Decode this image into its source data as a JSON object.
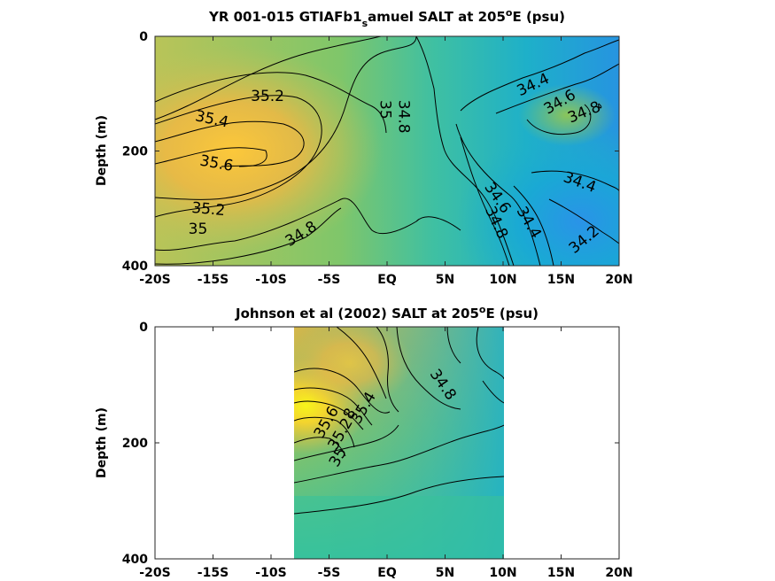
{
  "chart_data": [
    {
      "type": "contour",
      "title": {
        "before": "YR 001-015 GTIAFb1",
        "sub": "s",
        "after": "amuel SALT at 205",
        "sup": "o",
        "end": "E (psu)"
      },
      "ylabel": "Depth (m)",
      "xlim": [
        -20,
        20
      ],
      "ylim": [
        0,
        400
      ],
      "y_reversed": true,
      "x_ticks": [
        {
          "v": -20,
          "label": "-20S"
        },
        {
          "v": -15,
          "label": "-15S"
        },
        {
          "v": -10,
          "label": "-10S"
        },
        {
          "v": -5,
          "label": "-5S"
        },
        {
          "v": 0,
          "label": "EQ"
        },
        {
          "v": 5,
          "label": "5N"
        },
        {
          "v": 10,
          "label": "10N"
        },
        {
          "v": 15,
          "label": "15N"
        },
        {
          "v": 20,
          "label": "20N"
        }
      ],
      "y_ticks": [
        {
          "v": 0,
          "label": "0"
        },
        {
          "v": 200,
          "label": "200"
        },
        {
          "v": 400,
          "label": "400"
        }
      ],
      "data_extent": [
        -20,
        20
      ],
      "contour_labels": [
        {
          "text": "35.2",
          "x": -10.3,
          "y": 105,
          "rot": 0
        },
        {
          "text": "35.4",
          "x": -15.1,
          "y": 145,
          "rot": 12
        },
        {
          "text": "35.6",
          "x": -14.7,
          "y": 222,
          "rot": 10
        },
        {
          "text": "35.2",
          "x": -15.4,
          "y": 302,
          "rot": 5
        },
        {
          "text": "35",
          "x": -16.3,
          "y": 337,
          "rot": 0
        },
        {
          "text": "34.8",
          "x": -7.4,
          "y": 345,
          "rot": -32
        },
        {
          "text": "35",
          "x": -0.2,
          "y": 128,
          "rot": 90
        },
        {
          "text": "34.8",
          "x": 1.4,
          "y": 140,
          "rot": 90
        },
        {
          "text": "34.4",
          "x": 12.6,
          "y": 85,
          "rot": -25
        },
        {
          "text": "34.6",
          "x": 14.9,
          "y": 115,
          "rot": -30
        },
        {
          "text": "34.8",
          "x": 17.0,
          "y": 133,
          "rot": -22
        },
        {
          "text": "34.4",
          "x": 16.6,
          "y": 255,
          "rot": 20
        },
        {
          "text": "34.6",
          "x": 9.5,
          "y": 282,
          "rot": 55
        },
        {
          "text": "34.8",
          "x": 9.4,
          "y": 325,
          "rot": 65
        },
        {
          "text": "34.4",
          "x": 12.2,
          "y": 325,
          "rot": 60
        },
        {
          "text": "34.2",
          "x": 17.0,
          "y": 355,
          "rot": -40
        }
      ]
    },
    {
      "type": "contour",
      "title": {
        "before": "Johnson et al (2002) SALT at 205",
        "sub": "",
        "after": "",
        "sup": "o",
        "end": "E (psu)"
      },
      "ylabel": "Depth (m)",
      "xlim": [
        -20,
        20
      ],
      "ylim": [
        0,
        400
      ],
      "y_reversed": true,
      "x_ticks": [
        {
          "v": -20,
          "label": "-20S"
        },
        {
          "v": -15,
          "label": "-15S"
        },
        {
          "v": -10,
          "label": "-10S"
        },
        {
          "v": -5,
          "label": "-5S"
        },
        {
          "v": 0,
          "label": "EQ"
        },
        {
          "v": 5,
          "label": "5N"
        },
        {
          "v": 10,
          "label": "10N"
        },
        {
          "v": 15,
          "label": "15N"
        },
        {
          "v": 20,
          "label": "20N"
        }
      ],
      "y_ticks": [
        {
          "v": 0,
          "label": "0"
        },
        {
          "v": 200,
          "label": "200"
        },
        {
          "v": 400,
          "label": "400"
        }
      ],
      "data_extent": [
        -8,
        10
      ],
      "contour_labels": [
        {
          "text": "34.8",
          "x": 4.8,
          "y": 100,
          "rot": 55
        },
        {
          "text": "35",
          "x": -4.2,
          "y": 225,
          "rot": -60
        },
        {
          "text": "35.2",
          "x": -4.0,
          "y": 185,
          "rot": -60
        },
        {
          "text": "35.6",
          "x": -5.2,
          "y": 165,
          "rot": -60
        },
        {
          "text": "8",
          "x": -3.2,
          "y": 150,
          "rot": -60
        },
        {
          "text": "35.4",
          "x": -2.0,
          "y": 140,
          "rot": -60
        }
      ]
    }
  ]
}
